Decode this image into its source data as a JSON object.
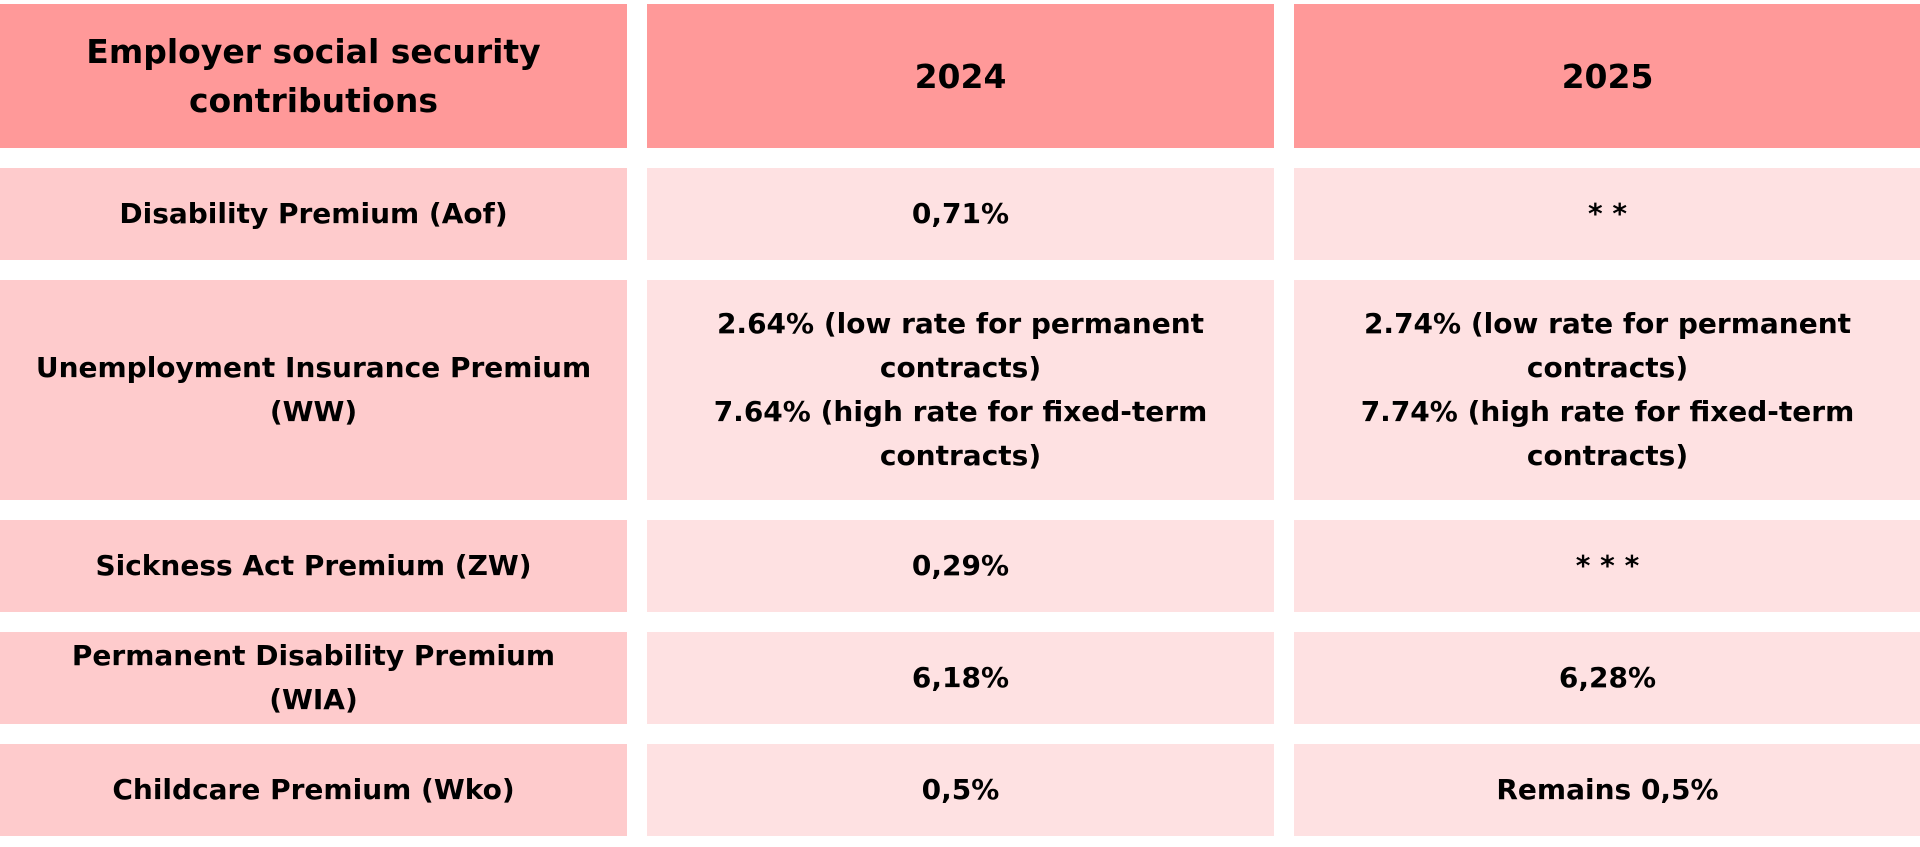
{
  "table": {
    "headers": [
      "Employer social security contributions",
      "2024",
      "2025"
    ],
    "rows": [
      {
        "label": "Disability Premium (Aof)",
        "y2024": [
          "0,71%"
        ],
        "y2025": [
          "* *"
        ]
      },
      {
        "label": "Unemployment Insurance Premium (WW)",
        "y2024": [
          "2.64% (low rate for permanent contracts)",
          "7.64% (high rate for fixed-term contracts)"
        ],
        "y2025": [
          "2.74% (low rate for permanent contracts)",
          "7.74% (high rate for fixed-term contracts)"
        ]
      },
      {
        "label": "Sickness Act Premium (ZW)",
        "y2024": [
          "0,29%"
        ],
        "y2025": [
          "* * *"
        ]
      },
      {
        "label": "Permanent Disability Premium (WIA)",
        "y2024": [
          "6,18%"
        ],
        "y2025": [
          "6,28%"
        ]
      },
      {
        "label": "Childcare Premium (Wko)",
        "y2024": [
          "0,5%"
        ],
        "y2025": [
          "Remains 0,5%"
        ]
      }
    ]
  },
  "colors": {
    "header_bg": "#ff9999",
    "label_bg": "#fecbcc",
    "value_bg": "#fee1e2"
  }
}
